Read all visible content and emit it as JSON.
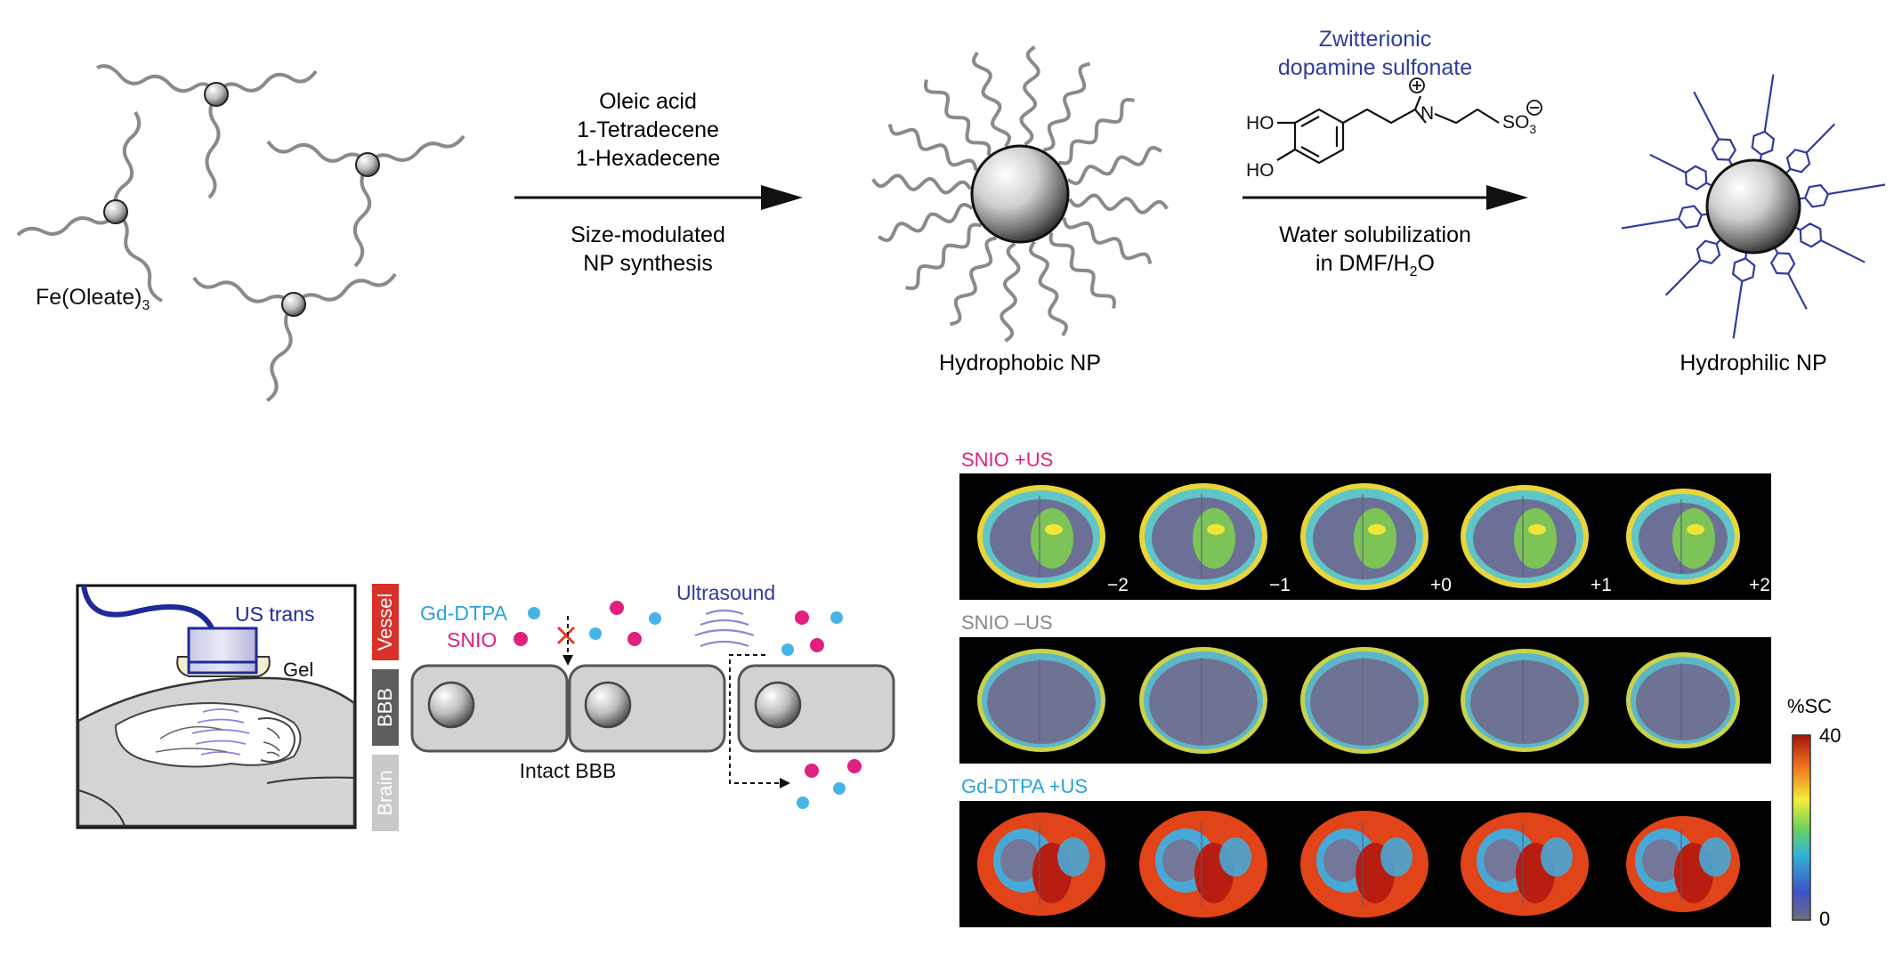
{
  "synthesis": {
    "precursor_label": "Fe(Oleate)",
    "precursor_subscript": "3",
    "step1_reagents": [
      "Oleic acid",
      "1-Tetradecene",
      "1-Hexadecene"
    ],
    "step1_description": [
      "Size-modulated",
      "NP synthesis"
    ],
    "hydrophobic_label": "Hydrophobic NP",
    "ligand_title": [
      "Zwitterionic",
      "dopamine sulfonate"
    ],
    "ligand_atoms": {
      "ho_top": "HO",
      "ho_bottom": "HO",
      "nitrogen": "N",
      "sulfonate": "SO",
      "sulfonate_sub": "3"
    },
    "step2_description_line1": "Water solubilization",
    "step2_description_line2_pre": "in DMF/H",
    "step2_description_line2_sub": "2",
    "step2_description_line2_post": "O",
    "hydrophilic_label": "Hydrophilic NP"
  },
  "schematic": {
    "transducer_label": "US trans",
    "gel_label": "Gel",
    "bands": [
      "Vessel",
      "BBB",
      "Brain"
    ],
    "gd_label": "Gd-DTPA",
    "snio_label": "SNIO",
    "ultrasound_label": "Ultrasound",
    "intact_label": "Intact BBB"
  },
  "mri": {
    "rows": [
      {
        "title": "SNIO +US",
        "title_color": "#e0207f"
      },
      {
        "title": "SNIO –US",
        "title_color": "#888888"
      },
      {
        "title": "Gd-DTPA +US",
        "title_color": "#2aa3dc"
      }
    ],
    "slice_labels": [
      "−2",
      "−1",
      "+0",
      "+1",
      "+2"
    ],
    "colorbar": {
      "title": "%SC",
      "max": "40",
      "min": "0"
    }
  },
  "colors": {
    "pink": "#e0207f",
    "blue": "#46b4e6",
    "navy": "#1f2a9a",
    "ligand_blue": "#2f3c9e",
    "vessel_red": "#d9302a",
    "bbb_gray": "#5d5d5d",
    "brain_gray": "#c9c9c9"
  }
}
